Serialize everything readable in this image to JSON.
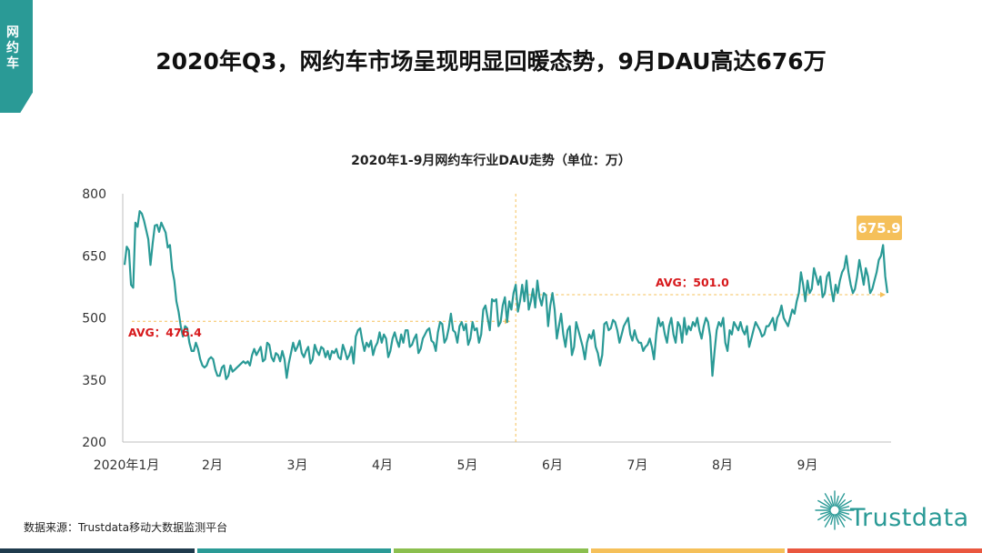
{
  "tag": {
    "label": "网约车"
  },
  "page_title": "2020年Q3，网约车市场呈现明显回暖态势，9月DAU高达676万",
  "source": "数据来源：Trustdata移动大数据监测平台",
  "logo": {
    "name": "Trustdata",
    "icon": "sunburst-icon"
  },
  "colors": {
    "tag": "#2a9a96",
    "line": "#2a9a96",
    "avg_label": "#d7191c",
    "avg_line": "#f5c05a",
    "peak_badge": "#f5c05a",
    "bottom_bar": [
      "#1f3b4d",
      "#2a9a96",
      "#8bbf4e",
      "#f5c05a",
      "#e9573f"
    ]
  },
  "chart_data": {
    "type": "line",
    "title": "2020年1-9月网约车行业DAU走势（单位：万）",
    "xlabel": "",
    "ylabel": "",
    "ylim": [
      200,
      800
    ],
    "yticks": [
      200,
      350,
      500,
      650,
      800
    ],
    "x_ticks": [
      "2020年1月",
      "2月",
      "3月",
      "4月",
      "5月",
      "6月",
      "7月",
      "8月",
      "9月"
    ],
    "grid": false,
    "divider_after_day": 181,
    "series": [
      {
        "values": [
          628,
          672,
          663,
          580,
          573,
          730,
          720,
          758,
          752,
          735,
          712,
          690,
          628,
          680,
          723,
          725,
          708,
          730,
          718,
          706,
          670,
          676,
          618,
          590,
          540,
          515,
          480,
          455,
          480,
          475,
          440,
          420,
          420,
          440,
          425,
          400,
          385,
          380,
          385,
          400,
          405,
          400,
          375,
          360,
          360,
          380,
          385,
          352,
          360,
          385,
          370,
          375,
          380,
          385,
          390,
          395,
          390,
          395,
          385,
          410,
          425,
          410,
          420,
          430,
          395,
          400,
          440,
          435,
          405,
          395,
          415,
          410,
          395,
          420,
          400,
          355,
          390,
          415,
          440,
          420,
          430,
          445,
          415,
          405,
          420,
          430,
          390,
          400,
          435,
          420,
          410,
          430,
          425,
          405,
          420,
          400,
          420,
          415,
          425,
          405,
          400,
          435,
          420,
          400,
          410,
          430,
          390,
          455,
          470,
          475,
          445,
          420,
          440,
          430,
          445,
          410,
          430,
          440,
          465,
          440,
          460,
          450,
          405,
          420,
          450,
          465,
          445,
          430,
          460,
          440,
          470,
          470,
          430,
          435,
          450,
          460,
          415,
          425,
          450,
          460,
          470,
          475,
          445,
          440,
          420,
          465,
          490,
          485,
          440,
          450,
          475,
          510,
          470,
          465,
          440,
          480,
          490,
          470,
          485,
          435,
          450,
          490,
          470,
          475,
          440,
          460,
          520,
          530,
          500,
          470,
          545,
          540,
          545,
          480,
          490,
          530,
          550,
          490,
          540,
          520,
          560,
          580,
          515,
          540,
          580,
          540,
          590,
          520,
          540,
          570,
          525,
          590,
          550,
          530,
          560,
          555,
          480,
          530,
          560,
          520,
          450,
          480,
          510,
          460,
          430,
          470,
          480,
          410,
          430,
          490,
          470,
          450,
          430,
          400,
          440,
          460,
          450,
          470,
          430,
          415,
          385,
          410,
          485,
          490,
          470,
          475,
          495,
          490,
          470,
          440,
          460,
          480,
          490,
          500,
          460,
          445,
          470,
          450,
          440,
          440,
          420,
          430,
          435,
          450,
          430,
          400,
          460,
          500,
          480,
          490,
          460,
          440,
          480,
          500,
          460,
          440,
          490,
          480,
          440,
          500,
          460,
          480,
          470,
          490,
          480,
          500,
          470,
          450,
          480,
          500,
          490,
          455,
          360,
          420,
          470,
          490,
          480,
          500,
          440,
          420,
          470,
          460,
          490,
          480,
          470,
          490,
          470,
          460,
          480,
          430,
          450,
          470,
          490,
          480,
          470,
          455,
          460,
          480,
          480,
          490,
          500,
          470,
          500,
          510,
          530,
          500,
          490,
          480,
          500,
          520,
          510,
          540,
          560,
          610,
          580,
          540,
          590,
          560,
          570,
          620,
          600,
          580,
          600,
          550,
          560,
          600,
          610,
          570,
          540,
          580,
          560,
          590,
          610,
          620,
          650,
          610,
          580,
          560,
          570,
          600,
          640,
          610,
          580,
          620,
          600,
          560,
          570,
          590,
          610,
          640,
          650,
          676,
          600,
          560
        ]
      }
    ],
    "annotations": [
      {
        "text": "AVG：476.4",
        "value": 476.4
      },
      {
        "text": "AVG：501.0",
        "value": 501.0
      },
      {
        "text": "675.9",
        "value": 675.9
      }
    ]
  }
}
